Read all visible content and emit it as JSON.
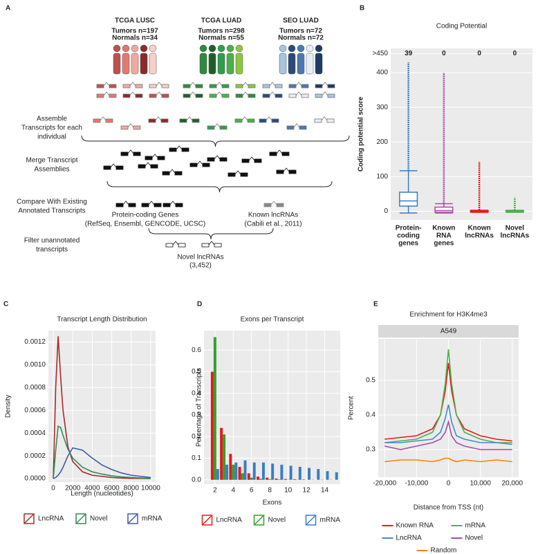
{
  "diagram": {
    "panel": "A",
    "cohorts": [
      {
        "name": "TCGA LUSC",
        "tumors": "Tumors n=197",
        "normals": "Normals n=34"
      },
      {
        "name": "TCGA LUAD",
        "tumors": "Tumors n=298",
        "normals": "Normals n=55"
      },
      {
        "name": "SEO LUAD",
        "tumors": "Tumors n=72",
        "normals": "Normals n=72"
      }
    ],
    "steps": [
      [
        "Assemble",
        "Transcripts for each",
        "individual"
      ],
      [
        "Merge Transcript",
        "Assemblies"
      ],
      [
        "Compare With Existing",
        "Annotated Transcripts"
      ],
      [
        "Filter unannotated",
        "transcripts"
      ]
    ],
    "sources": [
      {
        "name": "Protein-coding Genes",
        "detail": "(RefSeq, Ensembl, GENCODE, UCSC)"
      },
      {
        "name": "Known lncRNAs",
        "detail": "(Cabili et al., 2011)"
      }
    ],
    "result": {
      "name": "Novel lncRNAs",
      "count": "(3,452)"
    }
  },
  "chart_data": [
    {
      "type": "box",
      "panel": "B",
      "title": "Coding Potential",
      "y_label": "Coding potential score",
      "categories": [
        [
          "Protein-",
          "coding",
          "genes"
        ],
        [
          "Known",
          "RNA",
          "genes"
        ],
        [
          "Known",
          "lncRNAs"
        ],
        [
          "Novel",
          "lncRNAs"
        ]
      ],
      "colors": [
        "#3a7dc0",
        "#a64ca6",
        "#e31a1c",
        "#4daf4a"
      ],
      "boxes": [
        {
          "low": -5,
          "q1": 15,
          "median": 30,
          "q3": 55,
          "high": 117,
          "max": 430
        },
        {
          "low": -5,
          "q1": -3,
          "median": 2,
          "q3": 12,
          "high": 22,
          "max": 400
        },
        {
          "low": -3,
          "q1": -2,
          "median": 0,
          "q3": 2,
          "high": 3,
          "max": 143
        },
        {
          "low": -3,
          "q1": -2,
          "median": 0,
          "q3": 2,
          "high": 3,
          "max": 40
        }
      ],
      "top_counts": [
        39,
        0,
        0,
        0
      ],
      "ylim": [
        -25,
        470
      ],
      "yticks": [
        0,
        100,
        200,
        300,
        400,
        {
          "value": 455,
          "label": ">450"
        }
      ],
      "grid": true
    },
    {
      "type": "density",
      "panel": "C",
      "title": "Transcript Length Distribution",
      "x_label": "Length (nucleotides)",
      "y_label": "Density",
      "x": [
        0,
        250,
        500,
        750,
        1000,
        1500,
        2000,
        3000,
        4000,
        5000,
        6000,
        7000,
        8000,
        9000,
        10000
      ],
      "series": [
        {
          "name": "LncRNA",
          "color": "#a52a2a",
          "values": [
            0,
            0.0008,
            0.00125,
            0.0009,
            0.0006,
            0.00028,
            0.00015,
            6e-05,
            3e-05,
            2e-05,
            1e-05,
            5e-06,
            3e-06,
            2e-06,
            1e-06
          ]
        },
        {
          "name": "Novel",
          "color": "#2e8b57",
          "values": [
            0,
            0.00025,
            0.00046,
            0.00045,
            0.00038,
            0.00026,
            0.00018,
            0.0001,
            6e-05,
            4e-05,
            2.5e-05,
            1.5e-05,
            1e-05,
            6e-06,
            3e-06
          ]
        },
        {
          "name": "mRNA",
          "color": "#3c5aa8",
          "values": [
            0,
            1e-05,
            3e-05,
            6e-05,
            0.0001,
            0.0002,
            0.00027,
            0.00025,
            0.00018,
            0.00012,
            8e-05,
            5e-05,
            3e-05,
            2e-05,
            1e-05
          ]
        }
      ],
      "xlim": [
        -500,
        10500
      ],
      "xticks": [
        0,
        2000,
        4000,
        6000,
        8000,
        10000
      ],
      "ylim": [
        -3e-05,
        0.0013
      ],
      "yticks": [
        {
          "value": 0,
          "label": "0.0000"
        },
        {
          "value": 0.0002,
          "label": "0.0002"
        },
        {
          "value": 0.0004,
          "label": "0.0004"
        },
        {
          "value": 0.0006,
          "label": "0.0006"
        },
        {
          "value": 0.0008,
          "label": "0.0008"
        },
        {
          "value": 0.001,
          "label": "0.0010"
        },
        {
          "value": 0.0012,
          "label": "0.0012"
        }
      ],
      "grid": true,
      "legend": "bottom"
    },
    {
      "type": "bar",
      "panel": "D",
      "title": "Exons per Transcript",
      "x_label": "Exons",
      "y_label": "Percentage of Transcripts",
      "x": [
        2,
        3,
        4,
        5,
        6,
        7,
        8,
        9,
        10,
        11,
        12,
        13,
        14,
        15
      ],
      "series": [
        {
          "name": "LncRNA",
          "color": "#e31a1c",
          "values": [
            0.5,
            0.24,
            0.12,
            0.06,
            0.03,
            0.015,
            0.01,
            0.006,
            0.004,
            0.003,
            0.002,
            0.001,
            0.001,
            0.001
          ]
        },
        {
          "name": "Novel",
          "color": "#33a02c",
          "values": [
            0.66,
            0.21,
            0.07,
            0.03,
            0.01,
            0.005,
            0.003,
            0.002,
            0.001,
            0.001,
            0,
            0,
            0,
            0
          ]
        },
        {
          "name": "mRNA",
          "color": "#3a7dc0",
          "values": [
            0.05,
            0.07,
            0.08,
            0.09,
            0.08,
            0.08,
            0.075,
            0.07,
            0.065,
            0.06,
            0.055,
            0.05,
            0.04,
            0.035
          ]
        }
      ],
      "xlim": [
        0.8,
        15.7
      ],
      "xticks": [
        2,
        4,
        6,
        8,
        10,
        12,
        14
      ],
      "ylim": [
        -0.02,
        0.69
      ],
      "yticks": [
        {
          "value": 0,
          "label": "0.0"
        },
        0.1,
        0.2,
        0.3,
        0.4,
        0.5,
        0.6
      ],
      "grid": true,
      "legend": "bottom"
    },
    {
      "type": "line",
      "panel": "E",
      "title": "Enrichment for H3K4me3",
      "strip": "A549",
      "x_label": "Distance from TSS (nt)",
      "y_label": "Percent",
      "x": [
        -20000,
        -15000,
        -10000,
        -5000,
        -2500,
        -1000,
        0,
        1000,
        2500,
        5000,
        10000,
        15000,
        20000
      ],
      "series": [
        {
          "name": "Known RNA",
          "color": "#e31a1c",
          "values": [
            0.33,
            0.335,
            0.34,
            0.36,
            0.4,
            0.47,
            0.55,
            0.47,
            0.4,
            0.36,
            0.34,
            0.33,
            0.325
          ]
        },
        {
          "name": "mRNA",
          "color": "#4daf4a",
          "values": [
            0.32,
            0.325,
            0.33,
            0.35,
            0.4,
            0.49,
            0.59,
            0.49,
            0.4,
            0.35,
            0.33,
            0.32,
            0.32
          ]
        },
        {
          "name": "LncRNA",
          "color": "#3a8fc8",
          "values": [
            0.32,
            0.32,
            0.325,
            0.33,
            0.35,
            0.39,
            0.43,
            0.38,
            0.34,
            0.33,
            0.32,
            0.32,
            0.315
          ]
        },
        {
          "name": "Novel",
          "color": "#a64ca6",
          "values": [
            0.31,
            0.3,
            0.31,
            0.32,
            0.33,
            0.35,
            0.38,
            0.34,
            0.32,
            0.31,
            0.3,
            0.3,
            0.3
          ]
        },
        {
          "name": "Random",
          "color": "#ff7f00",
          "values": [
            0.265,
            0.27,
            0.27,
            0.265,
            0.27,
            0.275,
            0.275,
            0.27,
            0.265,
            0.27,
            0.265,
            0.27,
            0.265
          ]
        }
      ],
      "xlim": [
        -22000,
        22000
      ],
      "xticks": [
        {
          "value": -20000,
          "label": "-20,000"
        },
        {
          "value": -10000,
          "label": "-10,000"
        },
        0,
        {
          "value": 10000,
          "label": "10,000"
        },
        {
          "value": 20000,
          "label": "20,000"
        }
      ],
      "ylim": [
        0.22,
        0.62
      ],
      "yticks": [
        0.3,
        0.4,
        0.5
      ],
      "grid": true,
      "legend": "bottom"
    }
  ]
}
